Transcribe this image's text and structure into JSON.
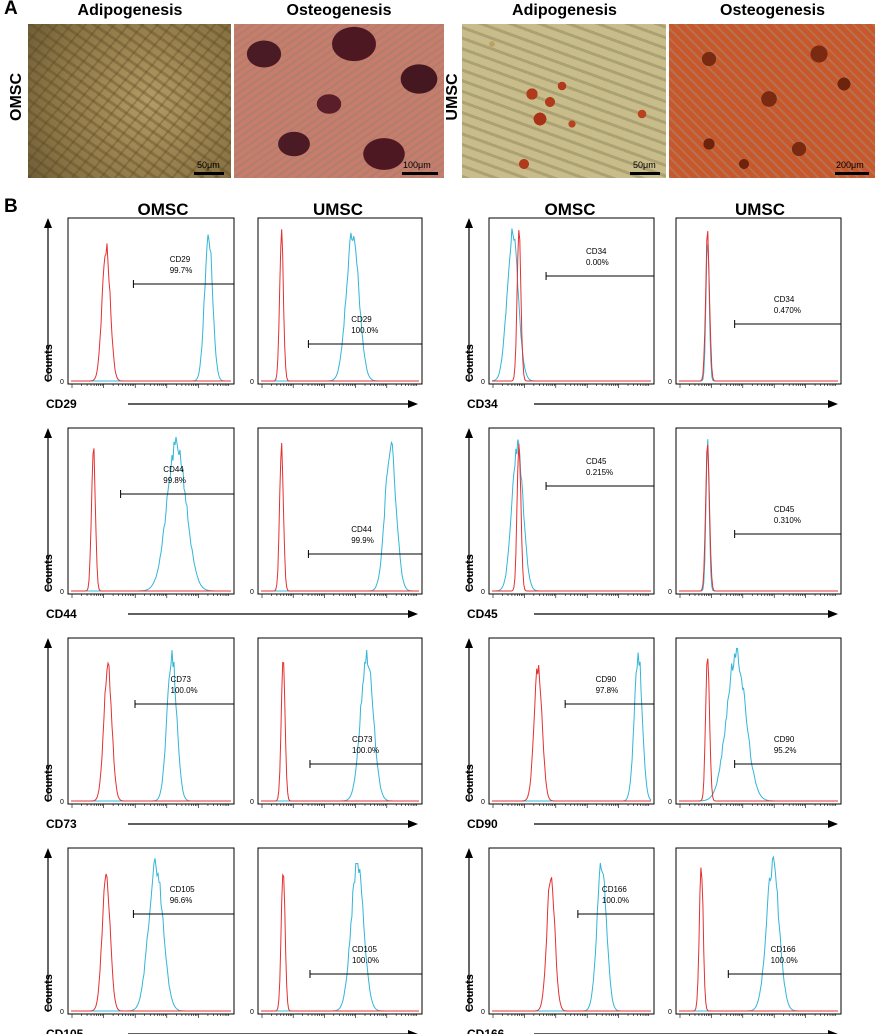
{
  "panel_a": {
    "letter": "A",
    "groups": [
      {
        "row_label": "OMSC",
        "images": [
          {
            "title": "Adipogenesis",
            "scale": "50μm"
          },
          {
            "title": "Osteogenesis",
            "scale": "100μm"
          }
        ]
      },
      {
        "row_label": "UMSC",
        "images": [
          {
            "title": "Adipogenesis",
            "scale": "50μm"
          },
          {
            "title": "Osteogenesis",
            "scale": "200μm"
          }
        ]
      }
    ]
  },
  "panel_b": {
    "letter": "B",
    "column_headers": [
      "OMSC",
      "UMSC",
      "OMSC",
      "UMSC"
    ],
    "ylabel": "Counts",
    "y_zero": "0"
  },
  "chart_data": [
    {
      "type": "histogram",
      "marker": "CD29",
      "cell": "OMSC",
      "gate_label": "CD29",
      "gate_value": "99.7%",
      "control_peak": 0.22,
      "stained_peak": 0.86,
      "stained_width": 0.025
    },
    {
      "type": "histogram",
      "marker": "CD29",
      "cell": "UMSC",
      "gate_label": "CD29",
      "gate_value": "100.0%",
      "control_peak": 0.13,
      "stained_peak": 0.58,
      "stained_width": 0.04
    },
    {
      "type": "histogram",
      "marker": "CD34",
      "cell": "OMSC",
      "gate_label": "CD34",
      "gate_value": "0.00%",
      "control_peak": 0.17,
      "stained_peak": 0.13,
      "stained_width": 0.035
    },
    {
      "type": "histogram",
      "marker": "CD34",
      "cell": "UMSC",
      "gate_label": "CD34",
      "gate_value": "0.470%",
      "control_peak": 0.18,
      "stained_peak": 0.18,
      "stained_width": 0.01
    },
    {
      "type": "histogram",
      "marker": "CD44",
      "cell": "OMSC",
      "gate_label": "CD44",
      "gate_value": "99.8%",
      "control_peak": 0.14,
      "stained_peak": 0.66,
      "stained_width": 0.06
    },
    {
      "type": "histogram",
      "marker": "CD44",
      "cell": "UMSC",
      "gate_label": "CD44",
      "gate_value": "99.9%",
      "control_peak": 0.13,
      "stained_peak": 0.82,
      "stained_width": 0.035
    },
    {
      "type": "histogram",
      "marker": "CD45",
      "cell": "OMSC",
      "gate_label": "CD45",
      "gate_value": "0.215%",
      "control_peak": 0.17,
      "stained_peak": 0.16,
      "stained_width": 0.035
    },
    {
      "type": "histogram",
      "marker": "CD45",
      "cell": "UMSC",
      "gate_label": "CD45",
      "gate_value": "0.310%",
      "control_peak": 0.18,
      "stained_peak": 0.18,
      "stained_width": 0.01
    },
    {
      "type": "histogram",
      "marker": "CD73",
      "cell": "OMSC",
      "gate_label": "CD73",
      "gate_value": "100.0%",
      "control_peak": 0.23,
      "stained_peak": 0.63,
      "stained_width": 0.03
    },
    {
      "type": "histogram",
      "marker": "CD73",
      "cell": "UMSC",
      "gate_label": "CD73",
      "gate_value": "100.0%",
      "control_peak": 0.14,
      "stained_peak": 0.67,
      "stained_width": 0.04
    },
    {
      "type": "histogram",
      "marker": "CD90",
      "cell": "OMSC",
      "gate_label": "CD90",
      "gate_value": "97.8%",
      "control_peak": 0.29,
      "stained_peak": 0.92,
      "stained_width": 0.025
    },
    {
      "type": "histogram",
      "marker": "CD90",
      "cell": "UMSC",
      "gate_label": "CD90",
      "gate_value": "95.2%",
      "control_peak": 0.18,
      "stained_peak": 0.36,
      "stained_width": 0.06
    },
    {
      "type": "histogram",
      "marker": "CD105",
      "cell": "OMSC",
      "gate_label": "CD105",
      "gate_value": "96.6%",
      "control_peak": 0.22,
      "stained_peak": 0.53,
      "stained_width": 0.045
    },
    {
      "type": "histogram",
      "marker": "CD105",
      "cell": "UMSC",
      "gate_label": "CD105",
      "gate_value": "100.0%",
      "control_peak": 0.14,
      "stained_peak": 0.61,
      "stained_width": 0.04
    },
    {
      "type": "histogram",
      "marker": "CD166",
      "cell": "OMSC",
      "gate_label": "CD166",
      "gate_value": "100.0%",
      "control_peak": 0.37,
      "stained_peak": 0.69,
      "stained_width": 0.03
    },
    {
      "type": "histogram",
      "marker": "CD166",
      "cell": "UMSC",
      "gate_label": "CD166",
      "gate_value": "100.0%",
      "control_peak": 0.14,
      "stained_peak": 0.59,
      "stained_width": 0.04
    }
  ],
  "colors": {
    "control": "#e53030",
    "stained": "#33b5d8",
    "axis": "#000000"
  }
}
